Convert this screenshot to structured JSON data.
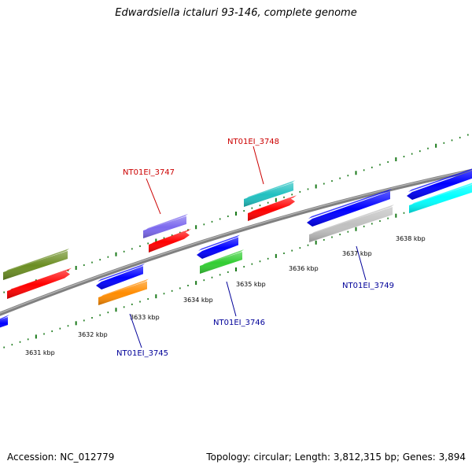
{
  "title": "Edwardsiella ictaluri 93-146, complete genome",
  "footer": {
    "accession": "Accession: NC_012779",
    "summary": "Topology: circular; Length: 3,812,315 bp; Genes: 3,894"
  },
  "ticks": [
    "3631 kbp",
    "3632 kbp",
    "3633 kbp",
    "3634 kbp",
    "3635 kbp",
    "3636 kbp",
    "3637 kbp",
    "3638 kbp"
  ],
  "gene_labels": [
    {
      "text": "NT01EI_3747",
      "color": "#cc0000"
    },
    {
      "text": "NT01EI_3748",
      "color": "#cc0000"
    },
    {
      "text": "NT01EI_3745",
      "color": "#000099"
    },
    {
      "text": "NT01EI_3746",
      "color": "#000099"
    },
    {
      "text": "NT01EI_3749",
      "color": "#000099"
    }
  ],
  "colors": {
    "backbone": "#808080",
    "tick_marks": "#1a7a1a",
    "olive": "#6b8e23",
    "red": "#ff0000",
    "blue": "#0000ff",
    "orange": "#ff8c00",
    "purple": "#7b68ee",
    "green": "#32cd32",
    "teal": "#20c0c0",
    "silver": "#c0c0c0",
    "cyan": "#00ffff"
  }
}
